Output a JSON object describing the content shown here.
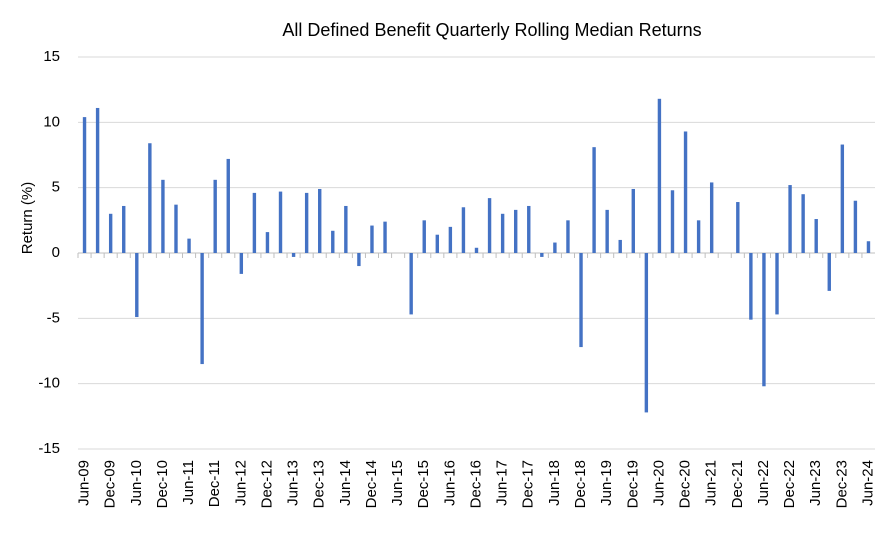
{
  "chart_data": {
    "type": "bar",
    "title": "All Defined Benefit Quarterly Rolling Median Returns",
    "y_label": "Return (%)",
    "categories": [
      "Jun-09",
      null,
      "Dec-09",
      null,
      "Jun-10",
      null,
      "Dec-10",
      null,
      "Jun-11",
      null,
      "Dec-11",
      null,
      "Jun-12",
      null,
      "Dec-12",
      null,
      "Jun-13",
      null,
      "Dec-13",
      null,
      "Jun-14",
      null,
      "Dec-14",
      null,
      "Jun-15",
      null,
      "Dec-15",
      null,
      "Jun-16",
      null,
      "Dec-16",
      null,
      "Jun-17",
      null,
      "Dec-17",
      null,
      "Jun-18",
      null,
      "Dec-18",
      null,
      "Jun-19",
      null,
      "Dec-19",
      null,
      "Jun-20",
      null,
      "Dec-20",
      null,
      "Jun-21",
      null,
      "Dec-21",
      null,
      "Jun-22",
      null,
      "Dec-22",
      null,
      "Jun-23",
      null,
      "Dec-23",
      null,
      "Jun-24"
    ],
    "values": [
      10.4,
      11.1,
      3.0,
      3.6,
      -4.9,
      8.4,
      5.6,
      3.7,
      1.1,
      -8.5,
      5.6,
      7.2,
      -1.6,
      4.6,
      1.6,
      4.7,
      -0.3,
      4.6,
      4.9,
      1.7,
      3.6,
      -1.0,
      2.1,
      2.4,
      0,
      -4.7,
      2.5,
      1.4,
      2.0,
      3.5,
      0.4,
      4.2,
      3.0,
      3.3,
      3.6,
      -0.3,
      0.8,
      2.5,
      -7.2,
      8.1,
      3.3,
      1.0,
      4.9,
      -12.2,
      11.8,
      4.8,
      9.3,
      2.5,
      5.4,
      0,
      3.9,
      -5.1,
      -10.2,
      -4.7,
      5.2,
      4.5,
      2.6,
      -2.9,
      8.3,
      4.0,
      0.9
    ],
    "color": "#4472c4",
    "ylim": [
      -15,
      15
    ],
    "yticks": [
      -15,
      -10,
      -5,
      0,
      5,
      10,
      15
    ],
    "grid": true
  }
}
